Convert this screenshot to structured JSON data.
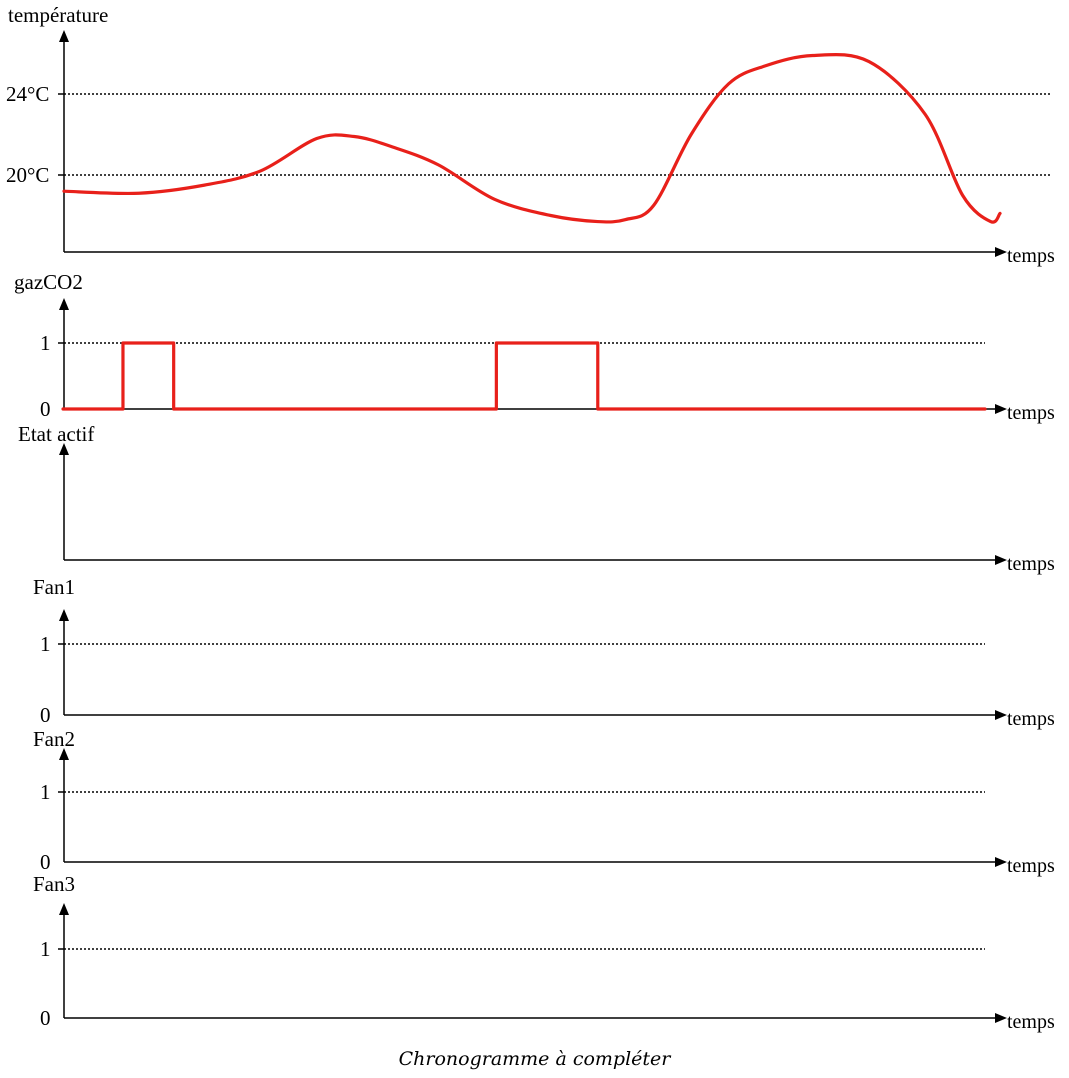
{
  "caption": "Chronogramme à compléter",
  "chart_data": [
    {
      "type": "line",
      "title": "température",
      "xlabel": "temps",
      "ylabel": "température",
      "ytick_labels": [
        "24°C",
        "20°C"
      ],
      "reference_lines": [
        24,
        20
      ],
      "ylim": [
        16,
        27
      ],
      "xlim": [
        0,
        100
      ],
      "grid": false,
      "series": [
        {
          "color": "#e8201a",
          "x": [
            0,
            8,
            15,
            21,
            27,
            31,
            35,
            40,
            46,
            52,
            57,
            60,
            63,
            67,
            71,
            75,
            80,
            86,
            92,
            96,
            99,
            100
          ],
          "values": [
            19.2,
            19.1,
            19.5,
            20.2,
            21.8,
            21.9,
            21.4,
            20.5,
            18.8,
            18.0,
            17.7,
            17.8,
            18.5,
            22.0,
            24.5,
            25.4,
            25.9,
            25.6,
            23.0,
            19.0,
            17.7,
            18.1
          ]
        }
      ]
    },
    {
      "type": "line",
      "title": "gazCO2",
      "xlabel": "temps",
      "ylabel": "gazCO2",
      "ytick_labels": [
        "1",
        "0"
      ],
      "reference_lines": [
        1
      ],
      "ylim": [
        0,
        1.5
      ],
      "xlim": [
        0,
        100
      ],
      "grid": false,
      "series": [
        {
          "color": "#e8201a",
          "x": [
            0,
            6.5,
            6.5,
            12,
            12,
            47,
            47,
            58,
            58,
            100
          ],
          "values": [
            0,
            0,
            1,
            1,
            0,
            0,
            1,
            1,
            0,
            0
          ]
        }
      ]
    },
    {
      "type": "line",
      "title": "Etat actif",
      "xlabel": "temps",
      "ylabel": "Etat actif",
      "ytick_labels": [],
      "reference_lines": [],
      "ylim": [
        0,
        1.5
      ],
      "xlim": [
        0,
        100
      ],
      "grid": false,
      "series": []
    },
    {
      "type": "line",
      "title": "Fan1",
      "xlabel": "temps",
      "ylabel": "Fan1",
      "ytick_labels": [
        "1",
        "0"
      ],
      "reference_lines": [
        1
      ],
      "ylim": [
        0,
        1.5
      ],
      "xlim": [
        0,
        100
      ],
      "grid": false,
      "series": []
    },
    {
      "type": "line",
      "title": "Fan2",
      "xlabel": "temps",
      "ylabel": "Fan2",
      "ytick_labels": [
        "1",
        "0"
      ],
      "reference_lines": [
        1
      ],
      "ylim": [
        0,
        1.5
      ],
      "xlim": [
        0,
        100
      ],
      "grid": false,
      "series": []
    },
    {
      "type": "line",
      "title": "Fan3",
      "xlabel": "temps",
      "ylabel": "Fan3",
      "ytick_labels": [
        "1",
        "0"
      ],
      "reference_lines": [
        1
      ],
      "ylim": [
        0,
        1.5
      ],
      "xlim": [
        0,
        100
      ],
      "grid": false,
      "series": []
    }
  ]
}
